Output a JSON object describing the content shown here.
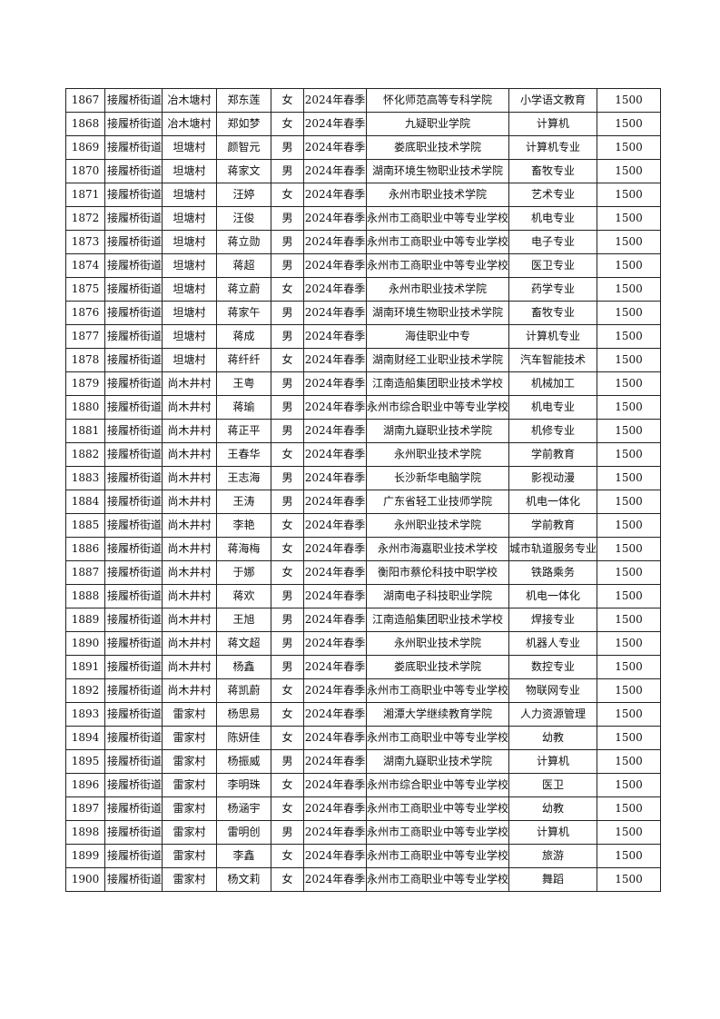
{
  "table": {
    "rows": [
      [
        "1867",
        "接履桥街道",
        "冶木塘村",
        "郑东莲",
        "女",
        "2024年春季",
        "怀化师范高等专科学院",
        "小学语文教育",
        "1500"
      ],
      [
        "1868",
        "接履桥街道",
        "冶木塘村",
        "郑如梦",
        "女",
        "2024年春季",
        "九疑职业学院",
        "计算机",
        "1500"
      ],
      [
        "1869",
        "接履桥街道",
        "坦塘村",
        "颜智元",
        "男",
        "2024年春季",
        "娄底职业技术学院",
        "计算机专业",
        "1500"
      ],
      [
        "1870",
        "接履桥街道",
        "坦塘村",
        "蒋家文",
        "男",
        "2024年春季",
        "湖南环境生物职业技术学院",
        "畜牧专业",
        "1500"
      ],
      [
        "1871",
        "接履桥街道",
        "坦塘村",
        "汪婷",
        "女",
        "2024年春季",
        "永州市职业技术学院",
        "艺术专业",
        "1500"
      ],
      [
        "1872",
        "接履桥街道",
        "坦塘村",
        "汪俊",
        "男",
        "2024年春季",
        "永州市工商职业中等专业学校",
        "机电专业",
        "1500"
      ],
      [
        "1873",
        "接履桥街道",
        "坦塘村",
        "蒋立勋",
        "男",
        "2024年春季",
        "永州市工商职业中等专业学校",
        "电子专业",
        "1500"
      ],
      [
        "1874",
        "接履桥街道",
        "坦塘村",
        "蒋超",
        "男",
        "2024年春季",
        "永州市工商职业中等专业学校",
        "医卫专业",
        "1500"
      ],
      [
        "1875",
        "接履桥街道",
        "坦塘村",
        "蒋立蔚",
        "女",
        "2024年春季",
        "永州市职业技术学院",
        "药学专业",
        "1500"
      ],
      [
        "1876",
        "接履桥街道",
        "坦塘村",
        "蒋家午",
        "男",
        "2024年春季",
        "湖南环境生物职业技术学院",
        "畜牧专业",
        "1500"
      ],
      [
        "1877",
        "接履桥街道",
        "坦塘村",
        "蒋成",
        "男",
        "2024年春季",
        "海佳职业中专",
        "计算机专业",
        "1500"
      ],
      [
        "1878",
        "接履桥街道",
        "坦塘村",
        "蒋纤纤",
        "女",
        "2024年春季",
        "湖南财经工业职业技术学院",
        "汽车智能技术",
        "1500"
      ],
      [
        "1879",
        "接履桥街道",
        "尚木井村",
        "王粤",
        "男",
        "2024年春季",
        "江南造船集团职业技术学校",
        "机械加工",
        "1500"
      ],
      [
        "1880",
        "接履桥街道",
        "尚木井村",
        "蒋瑜",
        "男",
        "2024年春季",
        "永州市综合职业中等专业学校",
        "机电专业",
        "1500"
      ],
      [
        "1881",
        "接履桥街道",
        "尚木井村",
        "蒋正平",
        "男",
        "2024年春季",
        "湖南九嶷职业技术学院",
        "机修专业",
        "1500"
      ],
      [
        "1882",
        "接履桥街道",
        "尚木井村",
        "王春华",
        "女",
        "2024年春季",
        "永州职业技术学院",
        "学前教育",
        "1500"
      ],
      [
        "1883",
        "接履桥街道",
        "尚木井村",
        "王志海",
        "男",
        "2024年春季",
        "长沙新华电脑学院",
        "影视动漫",
        "1500"
      ],
      [
        "1884",
        "接履桥街道",
        "尚木井村",
        "王涛",
        "男",
        "2024年春季",
        "广东省轻工业技师学院",
        "机电一体化",
        "1500"
      ],
      [
        "1885",
        "接履桥街道",
        "尚木井村",
        "李艳",
        "女",
        "2024年春季",
        "永州职业技术学院",
        "学前教育",
        "1500"
      ],
      [
        "1886",
        "接履桥街道",
        "尚木井村",
        "蒋海梅",
        "女",
        "2024年春季",
        "永州市海嘉职业技术学校",
        "城市轨道服务专业",
        "1500"
      ],
      [
        "1887",
        "接履桥街道",
        "尚木井村",
        "于娜",
        "女",
        "2024年春季",
        "衡阳市蔡伦科技中职学校",
        "铁路乘务",
        "1500"
      ],
      [
        "1888",
        "接履桥街道",
        "尚木井村",
        "蒋欢",
        "男",
        "2024年春季",
        "湖南电子科技职业学院",
        "机电一体化",
        "1500"
      ],
      [
        "1889",
        "接履桥街道",
        "尚木井村",
        "王旭",
        "男",
        "2024年春季",
        "江南造船集团职业技术学校",
        "焊接专业",
        "1500"
      ],
      [
        "1890",
        "接履桥街道",
        "尚木井村",
        "蒋文超",
        "男",
        "2024年春季",
        "永州职业技术学院",
        "机器人专业",
        "1500"
      ],
      [
        "1891",
        "接履桥街道",
        "尚木井村",
        "杨鑫",
        "男",
        "2024年春季",
        "娄底职业技术学院",
        "数控专业",
        "1500"
      ],
      [
        "1892",
        "接履桥街道",
        "尚木井村",
        "蒋凯蔚",
        "女",
        "2024年春季",
        "永州市工商职业中等专业学校",
        "物联网专业",
        "1500"
      ],
      [
        "1893",
        "接履桥街道",
        "雷家村",
        "杨思易",
        "女",
        "2024年春季",
        "湘潭大学继续教育学院",
        "人力资源管理",
        "1500"
      ],
      [
        "1894",
        "接履桥街道",
        "雷家村",
        "陈妍佳",
        "女",
        "2024年春季",
        "永州市工商职业中等专业学校",
        "幼教",
        "1500"
      ],
      [
        "1895",
        "接履桥街道",
        "雷家村",
        "杨振威",
        "男",
        "2024年春季",
        "湖南九嶷职业技术学院",
        "计算机",
        "1500"
      ],
      [
        "1896",
        "接履桥街道",
        "雷家村",
        "李明珠",
        "女",
        "2024年春季",
        "永州市综合职业中等专业学校",
        "医卫",
        "1500"
      ],
      [
        "1897",
        "接履桥街道",
        "雷家村",
        "杨涵宇",
        "女",
        "2024年春季",
        "永州市工商职业中等专业学校",
        "幼教",
        "1500"
      ],
      [
        "1898",
        "接履桥街道",
        "雷家村",
        "雷明创",
        "男",
        "2024年春季",
        "永州市工商职业中等专业学校",
        "计算机",
        "1500"
      ],
      [
        "1899",
        "接履桥街道",
        "雷家村",
        "李鑫",
        "女",
        "2024年春季",
        "永州市工商职业中等专业学校",
        "旅游",
        "1500"
      ],
      [
        "1900",
        "接履桥街道",
        "雷家村",
        "杨文莉",
        "女",
        "2024年春季",
        "永州市工商职业中等专业学校",
        "舞蹈",
        "1500"
      ]
    ]
  }
}
